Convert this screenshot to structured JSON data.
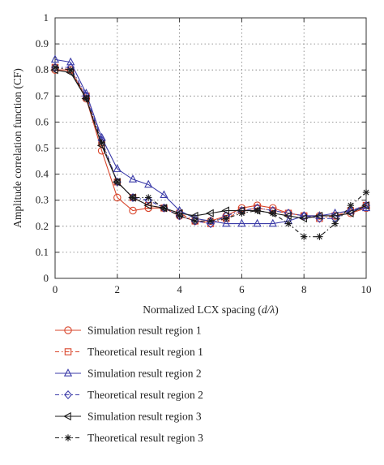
{
  "chart_data": {
    "type": "line",
    "xlabel": "Normalized LCX spacing (d/λ)",
    "xlabel_parts": {
      "before": "Normalized LCX spacing (",
      "italic": "d/λ",
      "after": ")"
    },
    "ylabel": "Amplitude correlation function (CF)",
    "xlim": [
      0,
      10
    ],
    "ylim": [
      0,
      1
    ],
    "xticks": [
      0,
      2,
      4,
      6,
      8,
      10
    ],
    "yticks": [
      0,
      0.1,
      0.2,
      0.3,
      0.4,
      0.5,
      0.6,
      0.7,
      0.8,
      0.9,
      1
    ],
    "ytick_labels": [
      "0",
      "0.1",
      "0.2",
      "0.3",
      "0.4",
      "0.5",
      "0.6",
      "0.7",
      "0.8",
      "0.9",
      "1"
    ],
    "grid": true,
    "legend_placement": "below",
    "series": [
      {
        "name": "Simulation result region 1",
        "color": "#d9452b",
        "dash": "solid",
        "marker": "circle",
        "x": [
          0,
          0.5,
          1,
          1.5,
          2,
          2.5,
          3,
          3.5,
          4,
          4.5,
          5,
          5.5,
          6,
          6.5,
          7,
          7.5,
          8,
          8.5,
          9,
          9.5,
          10
        ],
        "y": [
          0.8,
          0.8,
          0.69,
          0.49,
          0.31,
          0.26,
          0.27,
          0.27,
          0.24,
          0.22,
          0.22,
          0.24,
          0.27,
          0.28,
          0.27,
          0.25,
          0.24,
          0.24,
          0.24,
          0.25,
          0.27
        ]
      },
      {
        "name": "Theoretical result region 1",
        "color": "#d9452b",
        "dash": "dashdot",
        "marker": "square",
        "x": [
          0,
          0.5,
          1,
          1.5,
          2,
          2.5,
          3,
          3.5,
          4,
          4.5,
          5,
          5.5,
          6,
          6.5,
          7,
          7.5,
          8,
          8.5,
          9,
          9.5,
          10
        ],
        "y": [
          0.81,
          0.8,
          0.7,
          0.52,
          0.37,
          0.31,
          0.28,
          0.27,
          0.25,
          0.22,
          0.21,
          0.23,
          0.26,
          0.27,
          0.26,
          0.25,
          0.24,
          0.23,
          0.24,
          0.26,
          0.28
        ]
      },
      {
        "name": "Simulation result region 2",
        "color": "#3b3ba8",
        "dash": "solid",
        "marker": "triangle-up",
        "x": [
          0,
          0.5,
          1,
          1.5,
          2,
          2.5,
          3,
          3.5,
          4,
          4.5,
          5,
          5.5,
          6,
          6.5,
          7,
          7.5,
          8,
          8.5,
          9,
          9.5,
          10
        ],
        "y": [
          0.84,
          0.83,
          0.71,
          0.54,
          0.42,
          0.38,
          0.36,
          0.32,
          0.26,
          0.23,
          0.22,
          0.21,
          0.21,
          0.21,
          0.21,
          0.22,
          0.24,
          0.24,
          0.25,
          0.26,
          0.27
        ]
      },
      {
        "name": "Theoretical result region 2",
        "color": "#3b3ba8",
        "dash": "dashdot",
        "marker": "diamond",
        "x": [
          0,
          0.5,
          1,
          1.5,
          2,
          2.5,
          3,
          3.5,
          4,
          4.5,
          5,
          5.5,
          6,
          6.5,
          7,
          7.5,
          8,
          8.5,
          9,
          9.5,
          10
        ],
        "y": [
          0.81,
          0.81,
          0.7,
          0.53,
          0.37,
          0.31,
          0.3,
          0.27,
          0.24,
          0.22,
          0.21,
          0.24,
          0.26,
          0.27,
          0.26,
          0.25,
          0.24,
          0.23,
          0.23,
          0.26,
          0.28
        ]
      },
      {
        "name": "Simulation result region 3",
        "color": "#1a1a1a",
        "dash": "solid",
        "marker": "triangle-left",
        "x": [
          0,
          0.5,
          1,
          1.5,
          2,
          2.5,
          3,
          3.5,
          4,
          4.5,
          5,
          5.5,
          6,
          6.5,
          7,
          7.5,
          8,
          8.5,
          9,
          9.5,
          10
        ],
        "y": [
          0.8,
          0.79,
          0.69,
          0.51,
          0.37,
          0.31,
          0.28,
          0.27,
          0.25,
          0.24,
          0.25,
          0.26,
          0.26,
          0.26,
          0.25,
          0.24,
          0.23,
          0.24,
          0.24,
          0.25,
          0.28
        ]
      },
      {
        "name": "Theoretical result region 3",
        "color": "#1a1a1a",
        "dash": "dashdot",
        "marker": "asterisk",
        "x": [
          0,
          0.5,
          1,
          1.5,
          2,
          2.5,
          3,
          3.5,
          4,
          4.5,
          5,
          5.5,
          6,
          6.5,
          7,
          7.5,
          8,
          8.5,
          9,
          9.5,
          10
        ],
        "y": [
          0.81,
          0.8,
          0.69,
          0.52,
          0.37,
          0.31,
          0.31,
          0.27,
          0.24,
          0.22,
          0.22,
          0.23,
          0.25,
          0.26,
          0.25,
          0.21,
          0.16,
          0.16,
          0.21,
          0.28,
          0.33
        ]
      }
    ]
  }
}
